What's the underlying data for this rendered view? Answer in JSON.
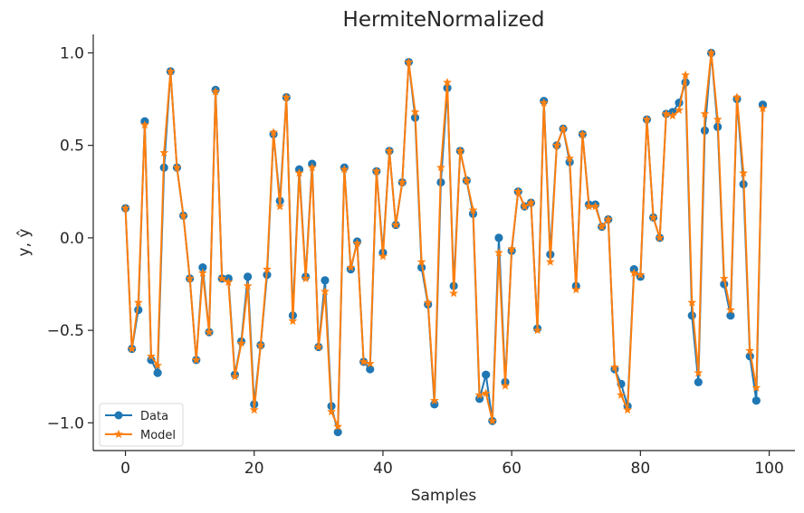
{
  "chart_data": {
    "type": "line",
    "title": "HermiteNormalized",
    "xlabel": "Samples",
    "ylabel": "y, ŷ",
    "xlim": [
      -5,
      104
    ],
    "ylim": [
      -1.15,
      1.1
    ],
    "xticks": [
      0,
      20,
      40,
      60,
      80,
      100
    ],
    "yticks": [
      -1.0,
      -0.5,
      0.0,
      0.5,
      1.0
    ],
    "xtick_labels": [
      "0",
      "20",
      "40",
      "60",
      "80",
      "100"
    ],
    "ytick_labels": [
      "−1.0",
      "−0.5",
      "0.0",
      "0.5",
      "1.0"
    ],
    "grid": false,
    "legend_position": "bottom-left",
    "x": [
      0,
      1,
      2,
      3,
      4,
      5,
      6,
      7,
      8,
      9,
      10,
      11,
      12,
      13,
      14,
      15,
      16,
      17,
      18,
      19,
      20,
      21,
      22,
      23,
      24,
      25,
      26,
      27,
      28,
      29,
      30,
      31,
      32,
      33,
      34,
      35,
      36,
      37,
      38,
      39,
      40,
      41,
      42,
      43,
      44,
      45,
      46,
      47,
      48,
      49,
      50,
      51,
      52,
      53,
      54,
      55,
      56,
      57,
      58,
      59,
      60,
      61,
      62,
      63,
      64,
      65,
      66,
      67,
      68,
      69,
      70,
      71,
      72,
      73,
      74,
      75,
      76,
      77,
      78,
      79,
      80,
      81,
      82,
      83,
      84,
      85,
      86,
      87,
      88,
      89,
      90,
      91,
      92,
      93,
      94,
      95,
      96,
      97,
      98,
      99
    ],
    "series": [
      {
        "name": "Data",
        "color": "#1f77b4",
        "marker": "circle",
        "values": [
          0.16,
          -0.6,
          -0.39,
          0.63,
          -0.66,
          -0.73,
          0.38,
          0.9,
          0.38,
          0.12,
          -0.22,
          -0.66,
          -0.16,
          -0.51,
          0.8,
          -0.22,
          -0.22,
          -0.74,
          -0.56,
          -0.21,
          -0.9,
          -0.58,
          -0.2,
          0.56,
          0.2,
          0.76,
          -0.42,
          0.37,
          -0.21,
          0.4,
          -0.59,
          -0.23,
          -0.91,
          -1.05,
          0.38,
          -0.17,
          -0.02,
          -0.67,
          -0.71,
          0.36,
          -0.08,
          0.47,
          0.07,
          0.3,
          0.95,
          0.65,
          -0.16,
          -0.36,
          -0.9,
          0.3,
          0.81,
          -0.26,
          0.47,
          0.31,
          0.13,
          -0.87,
          -0.74,
          -0.99,
          0.0,
          -0.78,
          -0.07,
          0.25,
          0.17,
          0.19,
          -0.49,
          0.74,
          -0.09,
          0.5,
          0.59,
          0.41,
          -0.26,
          0.56,
          0.18,
          0.18,
          0.06,
          0.1,
          -0.71,
          -0.79,
          -0.91,
          -0.17,
          -0.21,
          0.64,
          0.11,
          0.0,
          0.67,
          0.68,
          0.73,
          0.84,
          -0.42,
          -0.78,
          0.58,
          1.0,
          0.6,
          -0.25,
          -0.42,
          0.75,
          0.29,
          -0.64,
          -0.88,
          0.72
        ]
      },
      {
        "name": "Model",
        "color": "#ff7f0e",
        "marker": "star",
        "values": [
          0.16,
          -0.6,
          -0.35,
          0.61,
          -0.64,
          -0.69,
          0.46,
          0.9,
          0.38,
          0.12,
          -0.22,
          -0.66,
          -0.19,
          -0.51,
          0.79,
          -0.22,
          -0.24,
          -0.75,
          -0.57,
          -0.26,
          -0.93,
          -0.58,
          -0.17,
          0.57,
          0.17,
          0.76,
          -0.45,
          0.35,
          -0.22,
          0.38,
          -0.59,
          -0.29,
          -0.94,
          -1.02,
          0.37,
          -0.16,
          -0.03,
          -0.67,
          -0.68,
          0.36,
          -0.1,
          0.47,
          0.07,
          0.3,
          0.95,
          0.68,
          -0.13,
          -0.35,
          -0.88,
          0.38,
          0.84,
          -0.3,
          0.47,
          0.31,
          0.15,
          -0.85,
          -0.84,
          -0.99,
          -0.08,
          -0.8,
          -0.06,
          0.25,
          0.17,
          0.19,
          -0.5,
          0.73,
          -0.13,
          0.5,
          0.59,
          0.43,
          -0.28,
          0.56,
          0.17,
          0.17,
          0.06,
          0.1,
          -0.7,
          -0.85,
          -0.93,
          -0.19,
          -0.2,
          0.64,
          0.11,
          0.0,
          0.67,
          0.66,
          0.69,
          0.88,
          -0.35,
          -0.73,
          0.67,
          1.0,
          0.64,
          -0.22,
          -0.39,
          0.76,
          0.35,
          -0.61,
          -0.81,
          0.7
        ]
      }
    ]
  }
}
